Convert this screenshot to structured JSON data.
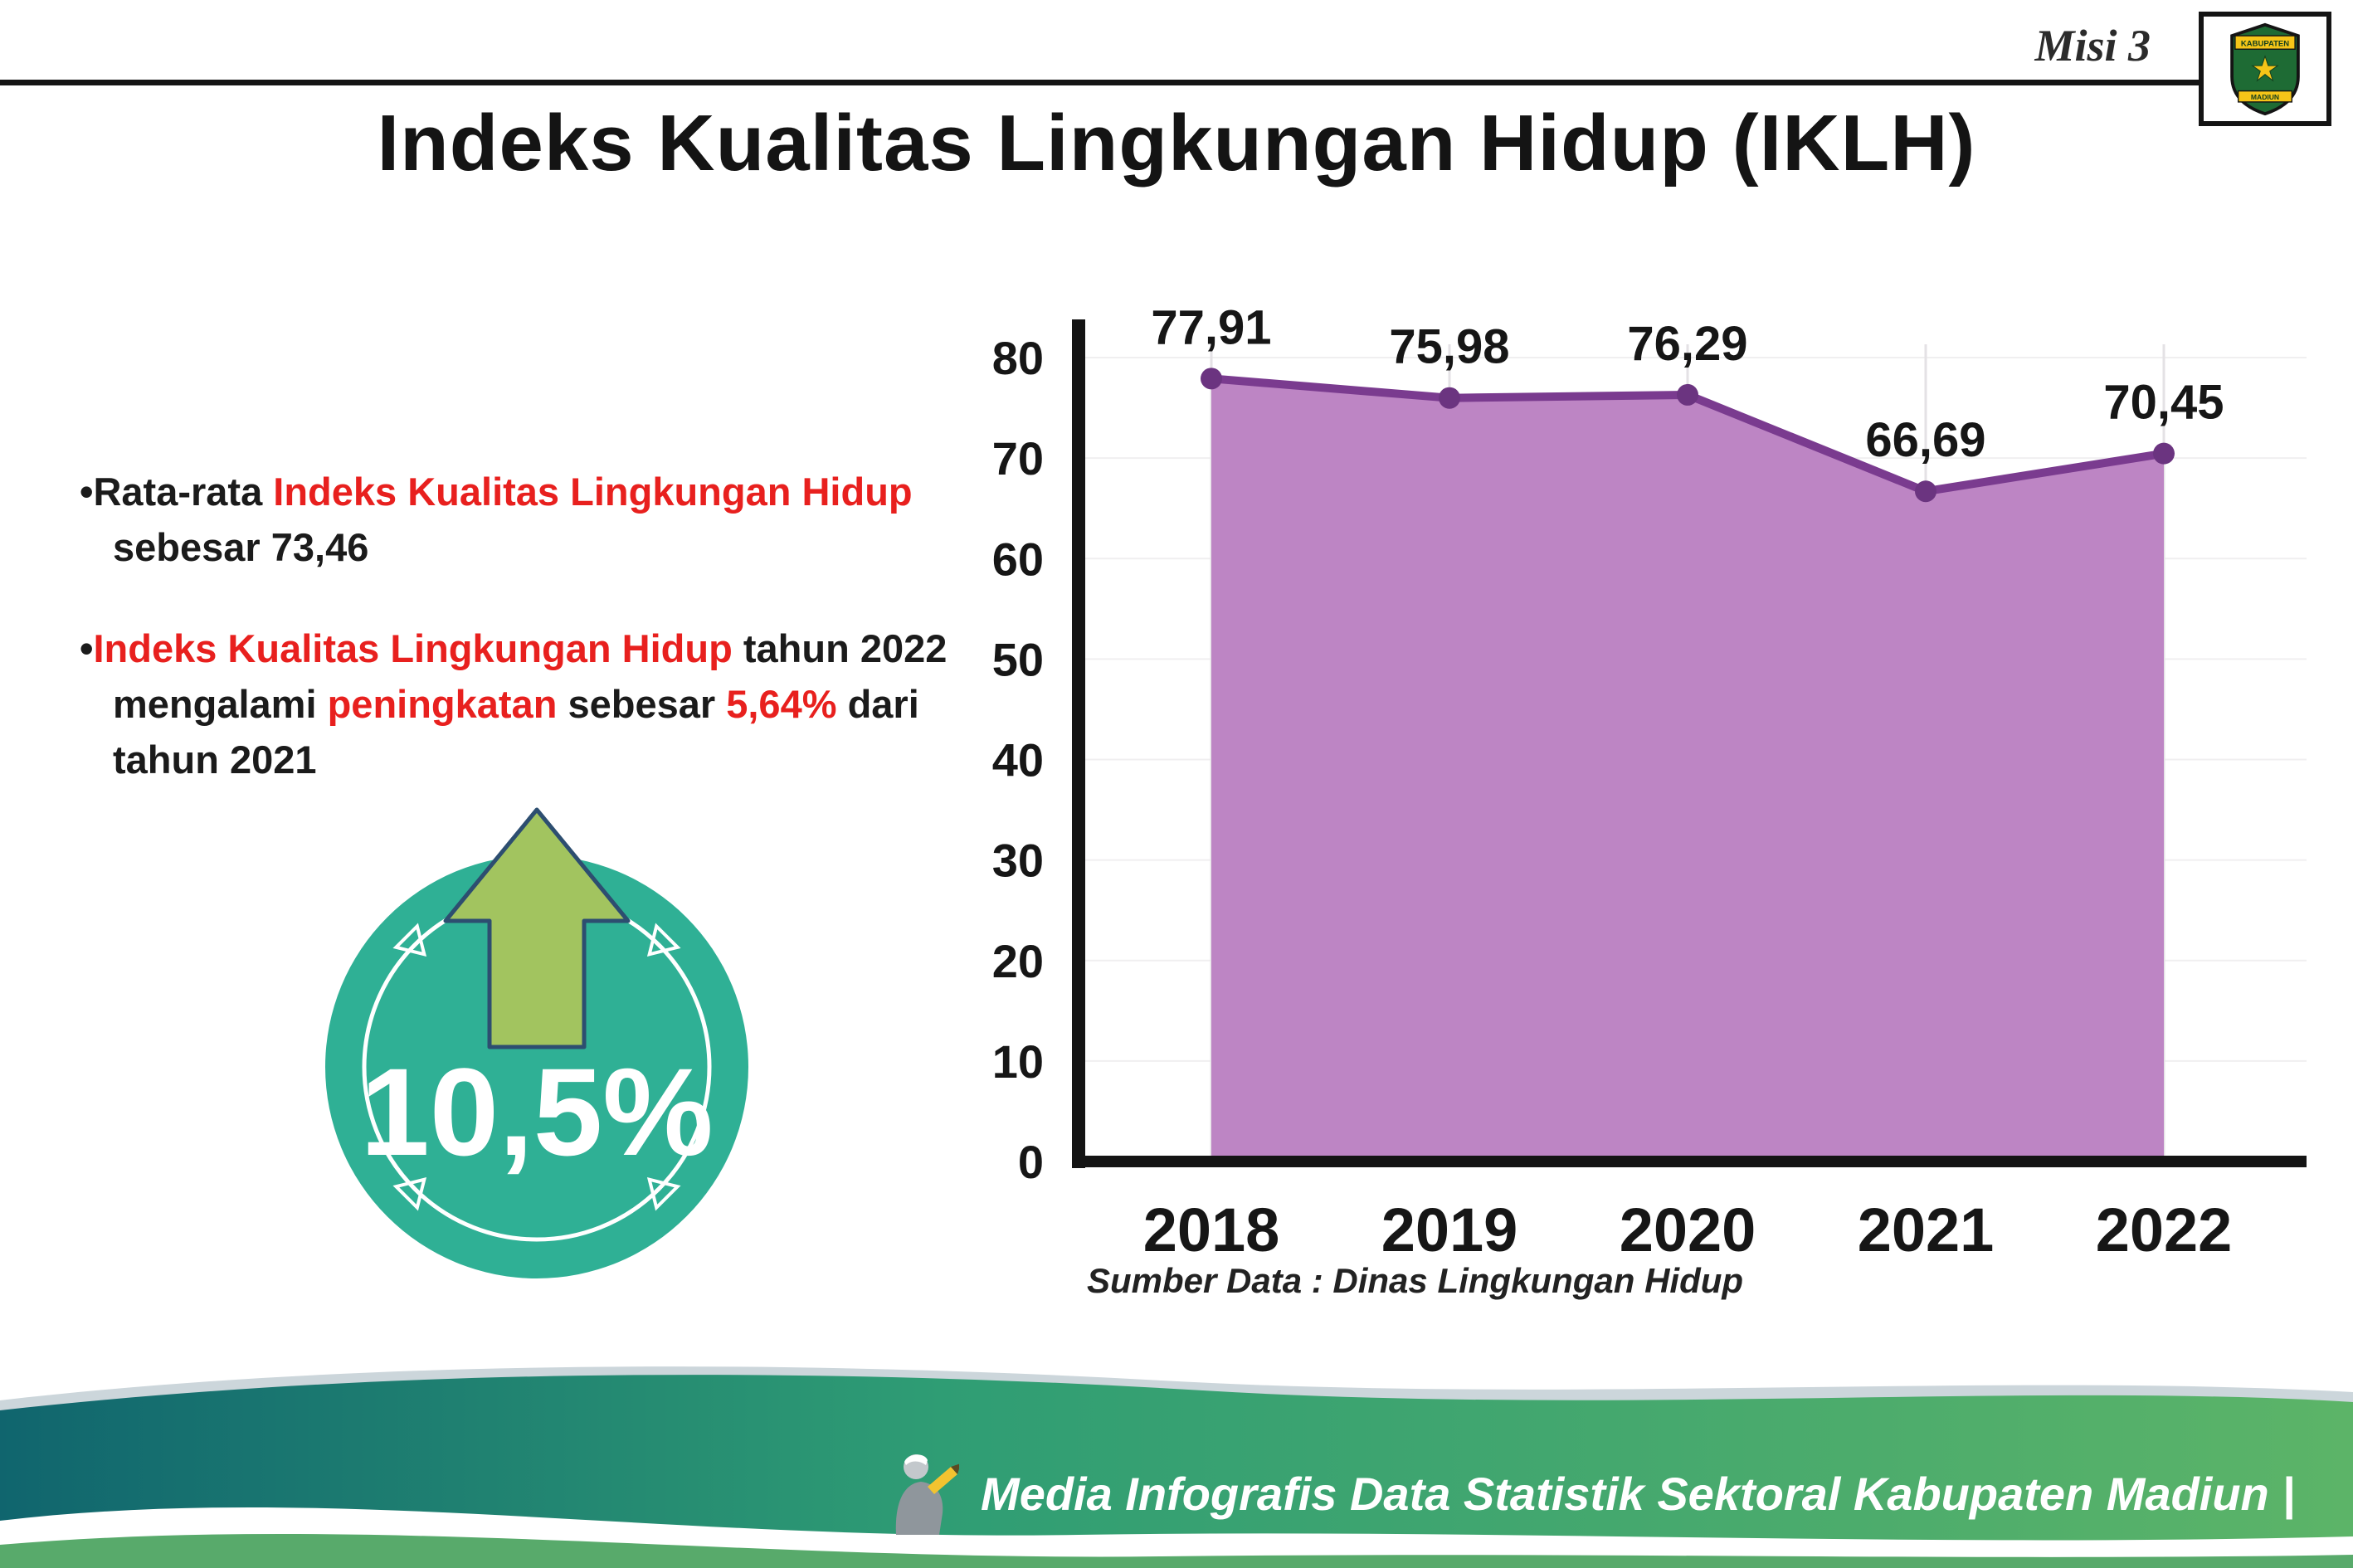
{
  "header": {
    "misi": "Misi 3",
    "title": "Indeks Kualitas Lingkungan Hidup (IKLH)"
  },
  "logo": {
    "top_text": "KABUPATEN",
    "bottom_text": "MADIUN"
  },
  "bullets": {
    "marker": "•",
    "items": [
      {
        "segments": [
          {
            "text": "Rata-rata ",
            "red": false
          },
          {
            "text": "Indeks Kualitas Lingkungan Hidup",
            "red": true
          },
          {
            "text": " sebesar 73,46",
            "red": false
          }
        ]
      },
      {
        "segments": [
          {
            "text": "Indeks Kualitas Lingkungan Hidup",
            "red": true
          },
          {
            "text": " tahun 2022 mengalami ",
            "red": false
          },
          {
            "text": "peningkatan",
            "red": true
          },
          {
            "text": " sebesar ",
            "red": false
          },
          {
            "text": "5,64%",
            "red": true
          },
          {
            "text": " dari tahun 2021",
            "red": false
          }
        ]
      }
    ]
  },
  "badge": {
    "value": "10,5%",
    "circle_color": "#2fb095",
    "arrow_color": "#a2c45f"
  },
  "chart_data": {
    "type": "area",
    "title": "",
    "xlabel": "",
    "ylabel": "",
    "categories": [
      "2018",
      "2019",
      "2020",
      "2021",
      "2022"
    ],
    "values": [
      77.91,
      75.98,
      76.29,
      66.69,
      70.45
    ],
    "value_labels": [
      "77,91",
      "75,98",
      "76,29",
      "66,69",
      "70,45"
    ],
    "ylim": [
      0,
      80
    ],
    "ytick_step": 10,
    "grid": true,
    "legend": "none",
    "area_color": "#bd85c4",
    "line_color": "#7a3b8f",
    "marker_color": "#6b3480",
    "source": "Sumber Data : Dinas Lingkungan Hidup"
  },
  "footer": {
    "text": "Media Infografis Data Statistik Sektoral Kabupaten Madiun |"
  }
}
